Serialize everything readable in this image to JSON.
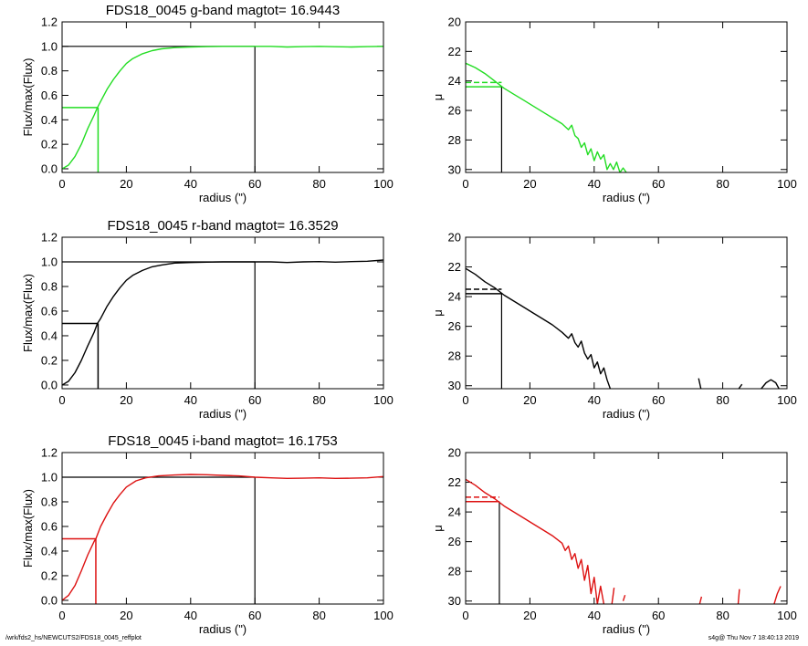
{
  "figure": {
    "footer_left": "/wrk/fds2_hs/NEWCUTS2/FDS18_0045_reffplot",
    "footer_right": "s4g@  Thu Nov  7 18:40:13 2019"
  },
  "colors": {
    "g": "#22dd22",
    "r": "#000000",
    "i": "#dd1111",
    "reference": "#000000"
  },
  "chart_data": [
    {
      "type": "line",
      "panel": "growth-curve",
      "band": "g",
      "title": "FDS18_0045 g-band  magtot=      16.9443",
      "xlabel": "radius (\")",
      "ylabel": "Flux/max(Flux)",
      "xlim": [
        0,
        100
      ],
      "ylim": [
        -0.03,
        1.2
      ],
      "xticks": [
        "0",
        "20",
        "40",
        "60",
        "80",
        "100"
      ],
      "yticks": [
        "0.0",
        "0.2",
        "0.4",
        "0.6",
        "0.8",
        "1.0",
        "1.2"
      ],
      "series": [
        {
          "values": [
            [
              0,
              0
            ],
            [
              2,
              0.03
            ],
            [
              4,
              0.1
            ],
            [
              6,
              0.2
            ],
            [
              8,
              0.33
            ],
            [
              10,
              0.44
            ],
            [
              11,
              0.5
            ],
            [
              12,
              0.55
            ],
            [
              14,
              0.65
            ],
            [
              16,
              0.73
            ],
            [
              18,
              0.8
            ],
            [
              20,
              0.86
            ],
            [
              22,
              0.9
            ],
            [
              25,
              0.94
            ],
            [
              28,
              0.965
            ],
            [
              31,
              0.98
            ],
            [
              35,
              0.99
            ],
            [
              40,
              0.995
            ],
            [
              45,
              0.998
            ],
            [
              50,
              1.0
            ],
            [
              55,
              1.0
            ],
            [
              60,
              1.0
            ],
            [
              65,
              1.0
            ],
            [
              70,
              0.995
            ],
            [
              75,
              0.998
            ],
            [
              80,
              1.0
            ],
            [
              85,
              0.997
            ],
            [
              90,
              0.995
            ],
            [
              95,
              0.998
            ],
            [
              100,
              1.0
            ]
          ]
        }
      ],
      "markers": {
        "r_half": 11.2,
        "flux_half": 0.5,
        "r_total": 60,
        "flux_total": 1.0
      }
    },
    {
      "type": "line",
      "panel": "surface-brightness",
      "band": "g",
      "xlabel": "radius (\")",
      "ylabel": "μ",
      "xlim": [
        0,
        100
      ],
      "ylim": [
        30.2,
        20
      ],
      "xticks": [
        "0",
        "20",
        "40",
        "60",
        "80",
        "100"
      ],
      "yticks": [
        "20",
        "22",
        "24",
        "26",
        "28",
        "30"
      ],
      "series": [
        {
          "values": [
            [
              0,
              22.8
            ],
            [
              3,
              23.1
            ],
            [
              6,
              23.5
            ],
            [
              9,
              24.0
            ],
            [
              12,
              24.5
            ],
            [
              15,
              24.9
            ],
            [
              18,
              25.3
            ],
            [
              21,
              25.7
            ],
            [
              24,
              26.1
            ],
            [
              27,
              26.5
            ],
            [
              30,
              26.9
            ],
            [
              32,
              27.3
            ],
            [
              33,
              27.0
            ],
            [
              34,
              27.7
            ],
            [
              35,
              27.9
            ],
            [
              36,
              28.5
            ],
            [
              37,
              28.2
            ],
            [
              38,
              29.0
            ],
            [
              39,
              28.6
            ],
            [
              40,
              29.4
            ],
            [
              41,
              28.8
            ],
            [
              42,
              29.3
            ],
            [
              43,
              29.0
            ],
            [
              44,
              30.0
            ],
            [
              45,
              29.6
            ],
            [
              46,
              30.0
            ],
            [
              47,
              29.5
            ],
            [
              48,
              30.2
            ],
            [
              49,
              29.9
            ],
            [
              50,
              30.2
            ]
          ]
        }
      ],
      "markers": {
        "r_half": 11.2,
        "mu_half": 24.4,
        "mu_mean": 24.1
      }
    },
    {
      "type": "line",
      "panel": "growth-curve",
      "band": "r",
      "title": "FDS18_0045 r-band  magtot=      16.3529",
      "xlabel": "radius (\")",
      "ylabel": "Flux/max(Flux)",
      "xlim": [
        0,
        100
      ],
      "ylim": [
        -0.03,
        1.2
      ],
      "xticks": [
        "0",
        "20",
        "40",
        "60",
        "80",
        "100"
      ],
      "yticks": [
        "0.0",
        "0.2",
        "0.4",
        "0.6",
        "0.8",
        "1.0",
        "1.2"
      ],
      "series": [
        {
          "values": [
            [
              0,
              0
            ],
            [
              2,
              0.03
            ],
            [
              4,
              0.1
            ],
            [
              6,
              0.2
            ],
            [
              8,
              0.32
            ],
            [
              10,
              0.43
            ],
            [
              11,
              0.5
            ],
            [
              12,
              0.54
            ],
            [
              14,
              0.64
            ],
            [
              16,
              0.72
            ],
            [
              18,
              0.79
            ],
            [
              20,
              0.85
            ],
            [
              22,
              0.89
            ],
            [
              25,
              0.93
            ],
            [
              28,
              0.96
            ],
            [
              31,
              0.975
            ],
            [
              35,
              0.99
            ],
            [
              40,
              0.995
            ],
            [
              45,
              0.998
            ],
            [
              50,
              1.0
            ],
            [
              55,
              1.0
            ],
            [
              60,
              1.0
            ],
            [
              65,
              1.0
            ],
            [
              70,
              0.995
            ],
            [
              75,
              1.0
            ],
            [
              80,
              1.002
            ],
            [
              85,
              0.998
            ],
            [
              90,
              1.002
            ],
            [
              95,
              1.005
            ],
            [
              100,
              1.015
            ]
          ]
        }
      ],
      "markers": {
        "r_half": 11.2,
        "flux_half": 0.5,
        "r_total": 60,
        "flux_total": 1.0
      }
    },
    {
      "type": "line",
      "panel": "surface-brightness",
      "band": "r",
      "xlabel": "radius (\")",
      "ylabel": "μ",
      "xlim": [
        0,
        100
      ],
      "ylim": [
        30.2,
        20
      ],
      "xticks": [
        "0",
        "20",
        "40",
        "60",
        "80",
        "100"
      ],
      "yticks": [
        "20",
        "22",
        "24",
        "26",
        "28",
        "30"
      ],
      "series": [
        {
          "values": [
            [
              0,
              22.1
            ],
            [
              3,
              22.5
            ],
            [
              6,
              23.0
            ],
            [
              9,
              23.4
            ],
            [
              12,
              23.9
            ],
            [
              15,
              24.3
            ],
            [
              18,
              24.7
            ],
            [
              21,
              25.1
            ],
            [
              24,
              25.5
            ],
            [
              27,
              25.9
            ],
            [
              30,
              26.4
            ],
            [
              32,
              26.8
            ],
            [
              33,
              26.5
            ],
            [
              34,
              27.1
            ],
            [
              35,
              27.4
            ],
            [
              36,
              27.0
            ],
            [
              37,
              27.8
            ],
            [
              38,
              28.2
            ],
            [
              39,
              27.9
            ],
            [
              40,
              28.8
            ],
            [
              41,
              28.4
            ],
            [
              42,
              29.2
            ],
            [
              43,
              28.8
            ],
            [
              44,
              29.6
            ],
            [
              45,
              30.2
            ]
          ]
        },
        {
          "values": [
            [
              72.5,
              29.5
            ],
            [
              73.2,
              30.2
            ]
          ]
        },
        {
          "values": [
            [
              85,
              30.2
            ],
            [
              86,
              29.9
            ]
          ]
        },
        {
          "values": [
            [
              92,
              30.2
            ],
            [
              93.5,
              29.8
            ],
            [
              95,
              29.6
            ],
            [
              96.5,
              29.8
            ],
            [
              97.5,
              30.2
            ]
          ]
        }
      ],
      "markers": {
        "r_half": 11.2,
        "mu_half": 23.8,
        "mu_mean": 23.5
      }
    },
    {
      "type": "line",
      "panel": "growth-curve",
      "band": "i",
      "title": "FDS18_0045 i-band  magtot=      16.1753",
      "xlabel": "radius (\")",
      "ylabel": "Flux/max(Flux)",
      "xlim": [
        0,
        100
      ],
      "ylim": [
        -0.03,
        1.2
      ],
      "xticks": [
        "0",
        "20",
        "40",
        "60",
        "80",
        "100"
      ],
      "yticks": [
        "0.0",
        "0.2",
        "0.4",
        "0.6",
        "0.8",
        "1.0",
        "1.2"
      ],
      "series": [
        {
          "values": [
            [
              0,
              0
            ],
            [
              2,
              0.04
            ],
            [
              4,
              0.12
            ],
            [
              6,
              0.24
            ],
            [
              8,
              0.37
            ],
            [
              10,
              0.48
            ],
            [
              10.5,
              0.5
            ],
            [
              12,
              0.6
            ],
            [
              14,
              0.7
            ],
            [
              16,
              0.79
            ],
            [
              18,
              0.86
            ],
            [
              20,
              0.92
            ],
            [
              23,
              0.97
            ],
            [
              26,
              0.995
            ],
            [
              30,
              1.01
            ],
            [
              35,
              1.018
            ],
            [
              40,
              1.022
            ],
            [
              45,
              1.02
            ],
            [
              50,
              1.015
            ],
            [
              55,
              1.01
            ],
            [
              60,
              1.0
            ],
            [
              65,
              0.995
            ],
            [
              70,
              0.99
            ],
            [
              75,
              0.992
            ],
            [
              80,
              0.995
            ],
            [
              85,
              0.99
            ],
            [
              90,
              0.992
            ],
            [
              95,
              0.995
            ],
            [
              100,
              1.005
            ]
          ]
        }
      ],
      "markers": {
        "r_half": 10.5,
        "flux_half": 0.5,
        "r_total": 60,
        "flux_total": 1.0
      }
    },
    {
      "type": "line",
      "panel": "surface-brightness",
      "band": "i",
      "xlabel": "radius (\")",
      "ylabel": "μ",
      "xlim": [
        0,
        100
      ],
      "ylim": [
        30.2,
        20
      ],
      "xticks": [
        "0",
        "20",
        "40",
        "60",
        "80",
        "100"
      ],
      "yticks": [
        "20",
        "22",
        "24",
        "26",
        "28",
        "30"
      ],
      "series": [
        {
          "values": [
            [
              0,
              21.8
            ],
            [
              3,
              22.2
            ],
            [
              6,
              22.7
            ],
            [
              9,
              23.1
            ],
            [
              12,
              23.6
            ],
            [
              15,
              24.0
            ],
            [
              18,
              24.4
            ],
            [
              21,
              24.8
            ],
            [
              24,
              25.2
            ],
            [
              27,
              25.6
            ],
            [
              30,
              26.1
            ],
            [
              31,
              26.6
            ],
            [
              32,
              26.3
            ],
            [
              33,
              27.2
            ],
            [
              34,
              26.8
            ],
            [
              35,
              27.8
            ],
            [
              36,
              27.2
            ],
            [
              37,
              28.6
            ],
            [
              38,
              27.6
            ],
            [
              39,
              29.5
            ],
            [
              40,
              28.4
            ],
            [
              41,
              30.2
            ],
            [
              42,
              29.0
            ],
            [
              43,
              30.2
            ]
          ]
        },
        {
          "values": [
            [
              45.5,
              30.2
            ],
            [
              46.2,
              29.1
            ]
          ]
        },
        {
          "values": [
            [
              49,
              30.0
            ],
            [
              49.6,
              29.6
            ]
          ]
        },
        {
          "values": [
            [
              72.8,
              30.2
            ],
            [
              73.4,
              29.7
            ]
          ]
        },
        {
          "values": [
            [
              84.8,
              30.2
            ],
            [
              85.2,
              29.2
            ]
          ]
        },
        {
          "values": [
            [
              96,
              30.2
            ],
            [
              97,
              29.5
            ],
            [
              98,
              29.0
            ]
          ]
        }
      ],
      "markers": {
        "r_half": 10.5,
        "mu_half": 23.3,
        "mu_mean": 23.0
      }
    }
  ]
}
